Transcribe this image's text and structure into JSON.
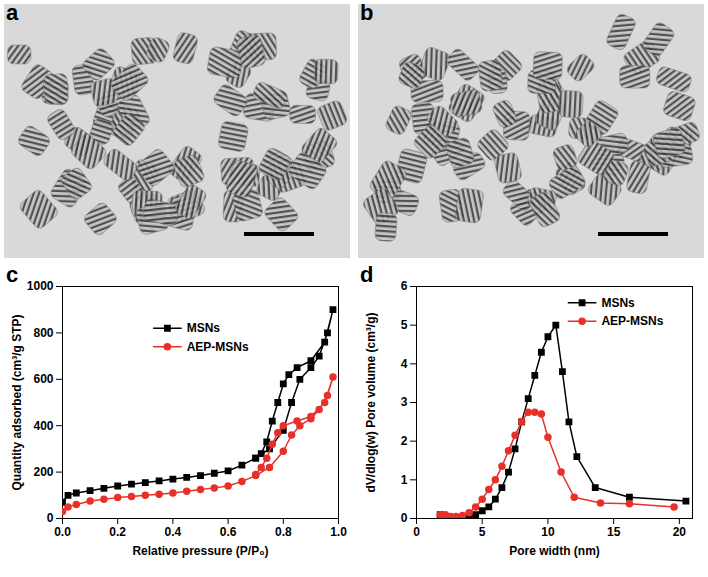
{
  "images": [
    {
      "label": "a"
    },
    {
      "label": "b"
    }
  ],
  "chart_data": [
    {
      "type": "line",
      "title": "c",
      "x_label": "Relative pressure (P/P₀)",
      "y_label": "Quantity adsorbed (cm³/g STP)",
      "xlim": [
        0,
        1
      ],
      "ylim": [
        0,
        1000
      ],
      "xticks": [
        {
          "value": 0,
          "label": "0.0"
        },
        {
          "value": 0.2,
          "label": "0.2"
        },
        {
          "value": 0.4,
          "label": "0.4"
        },
        {
          "value": 0.6,
          "label": "0.6"
        },
        {
          "value": 0.8,
          "label": "0.8"
        },
        {
          "value": 1,
          "label": "1.0"
        }
      ],
      "yticks": [
        0,
        200,
        400,
        600,
        800,
        1000
      ],
      "grid": false,
      "legend": "top",
      "series": [
        {
          "name": "MSNs",
          "color": "#000000",
          "marker": "square",
          "x": [
            0.0,
            0.02,
            0.05,
            0.1,
            0.15,
            0.2,
            0.25,
            0.3,
            0.35,
            0.4,
            0.45,
            0.5,
            0.55,
            0.6,
            0.65,
            0.7,
            0.75,
            0.8,
            0.83,
            0.86,
            0.9,
            0.93,
            0.96,
            0.98,
            0.95,
            0.9,
            0.85,
            0.82,
            0.8,
            0.78,
            0.76,
            0.74,
            0.72,
            0.7
          ],
          "values": [
            70,
            100,
            110,
            120,
            130,
            140,
            148,
            155,
            162,
            170,
            177,
            185,
            195,
            205,
            230,
            260,
            300,
            380,
            500,
            600,
            650,
            700,
            800,
            900,
            760,
            680,
            650,
            620,
            580,
            500,
            420,
            330,
            280,
            260
          ]
        },
        {
          "name": "AEP-MSNs",
          "color": "#e8302a",
          "marker": "circle",
          "x": [
            0.0,
            0.02,
            0.05,
            0.1,
            0.15,
            0.2,
            0.25,
            0.3,
            0.35,
            0.4,
            0.45,
            0.5,
            0.55,
            0.6,
            0.65,
            0.7,
            0.75,
            0.8,
            0.83,
            0.86,
            0.9,
            0.93,
            0.96,
            0.98,
            0.95,
            0.9,
            0.85,
            0.8,
            0.78,
            0.76,
            0.74,
            0.72,
            0.7
          ],
          "values": [
            30,
            50,
            60,
            75,
            83,
            90,
            95,
            100,
            105,
            110,
            117,
            125,
            132,
            140,
            160,
            185,
            220,
            290,
            360,
            400,
            430,
            470,
            530,
            610,
            500,
            440,
            420,
            400,
            370,
            320,
            260,
            220,
            190
          ]
        }
      ]
    },
    {
      "type": "line",
      "title": "d",
      "x_label": "Pore width (nm)",
      "y_label": "dV/dlog(w) Pore volume (cm³/g)",
      "xlim": [
        0,
        21
      ],
      "ylim": [
        0,
        6
      ],
      "xticks": [
        0,
        5,
        10,
        15,
        20
      ],
      "yticks": [
        0,
        1,
        2,
        3,
        4,
        5,
        6
      ],
      "grid": false,
      "legend": "top-right",
      "series": [
        {
          "name": "MSNs",
          "color": "#000000",
          "marker": "square",
          "x": [
            1.8,
            2.2,
            2.6,
            3.0,
            3.5,
            4.0,
            4.5,
            5.0,
            5.5,
            6.0,
            6.5,
            7.0,
            7.5,
            8.0,
            8.5,
            9.0,
            9.5,
            10.0,
            10.6,
            11.1,
            11.6,
            12.2,
            13.6,
            16.2,
            20.5
          ],
          "values": [
            0.1,
            0.05,
            0.02,
            0.0,
            0.0,
            0.05,
            0.1,
            0.2,
            0.3,
            0.5,
            0.8,
            1.2,
            1.8,
            2.5,
            3.1,
            3.7,
            4.3,
            4.7,
            5.0,
            3.8,
            2.5,
            1.6,
            0.8,
            0.55,
            0.45
          ]
        },
        {
          "name": "AEP-MSNs",
          "color": "#e8302a",
          "marker": "circle",
          "x": [
            1.8,
            2.2,
            2.6,
            3.0,
            3.5,
            4.0,
            4.5,
            5.0,
            5.5,
            6.0,
            6.5,
            7.0,
            7.5,
            8.0,
            8.5,
            9.0,
            9.5,
            10.0,
            11.0,
            12.0,
            14.0,
            16.2,
            19.6
          ],
          "values": [
            0.1,
            0.1,
            0.05,
            0.05,
            0.08,
            0.15,
            0.3,
            0.5,
            0.75,
            1.0,
            1.35,
            1.75,
            2.15,
            2.5,
            2.75,
            2.75,
            2.7,
            2.1,
            1.2,
            0.55,
            0.4,
            0.38,
            0.3
          ]
        }
      ]
    }
  ]
}
